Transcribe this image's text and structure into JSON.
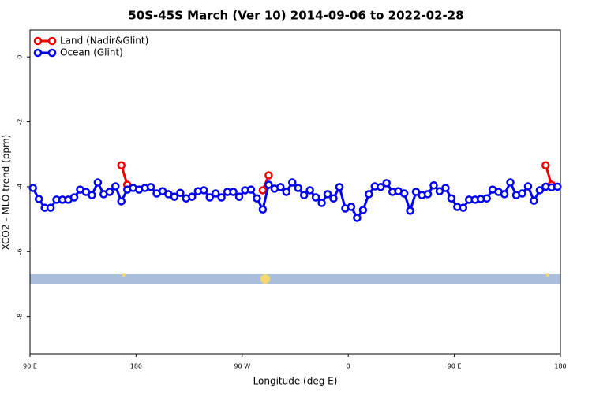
{
  "chart_data": {
    "type": "line",
    "title": "50S-45S March (Ver 10)   2014-09-06 to 2022-02-28",
    "x_label": "Longitude (deg E)",
    "y_label": "XCO2 - MLO trend (ppm)",
    "xlim": [
      90,
      540
    ],
    "ylim": [
      -9.15,
      0.83
    ],
    "xticks": [
      {
        "value": 90,
        "label": "90 E"
      },
      180,
      {
        "value": 270,
        "label": "90 W"
      },
      {
        "value": 360,
        "label": "0"
      },
      {
        "value": 450,
        "label": "90 E"
      },
      {
        "value": 540,
        "label": "180"
      }
    ],
    "yticks": [
      0,
      -2,
      -4,
      -6,
      -8
    ],
    "legend": "top-left",
    "series": [
      {
        "name": "Land (Nadir&Glint)",
        "color": "#ee0000",
        "x": [
          167.5,
          172.5,
          null,
          287.5,
          292.5,
          null,
          527.5,
          532.5
        ],
        "values": [
          -3.34,
          -3.94,
          null,
          -4.11,
          -3.65,
          null,
          -3.34,
          -3.94
        ]
      },
      {
        "name": "Ocean (Glint)",
        "color": "#0000ee",
        "x": [
          92.5,
          97.5,
          102.5,
          107.5,
          112.5,
          117.5,
          122.5,
          127.5,
          132.5,
          137.5,
          142.5,
          147.5,
          152.5,
          157.5,
          162.5,
          167.5,
          172.5,
          177.5,
          182.5,
          187.5,
          192.5,
          197.5,
          202.5,
          207.5,
          212.5,
          217.5,
          222.5,
          227.5,
          232.5,
          237.5,
          242.5,
          247.5,
          252.5,
          257.5,
          262.5,
          267.5,
          272.5,
          277.5,
          282.5,
          287.5,
          292.5,
          297.5,
          302.5,
          307.5,
          312.5,
          317.5,
          322.5,
          327.5,
          332.5,
          337.5,
          342.5,
          347.5,
          352.5,
          357.5,
          362.5,
          367.5,
          372.5,
          377.5,
          382.5,
          387.5,
          392.5,
          397.5,
          402.5,
          407.5,
          412.5,
          417.5,
          422.5,
          427.5,
          432.5,
          437.5,
          442.5,
          447.5,
          452.5,
          457.5,
          462.5,
          467.5,
          472.5,
          477.5,
          482.5,
          487.5,
          492.5,
          497.5,
          502.5,
          507.5,
          512.5,
          517.5,
          522.5,
          527.5,
          532.5,
          537.5
        ],
        "values": [
          -4.04,
          -4.38,
          -4.65,
          -4.65,
          -4.4,
          -4.4,
          -4.4,
          -4.33,
          -4.09,
          -4.16,
          -4.26,
          -3.87,
          -4.23,
          -4.16,
          -3.99,
          -4.45,
          -4.09,
          -4.04,
          -4.09,
          -4.04,
          -4.01,
          -4.21,
          -4.14,
          -4.23,
          -4.31,
          -4.19,
          -4.36,
          -4.31,
          -4.14,
          -4.11,
          -4.33,
          -4.21,
          -4.33,
          -4.16,
          -4.16,
          -4.31,
          -4.11,
          -4.09,
          -4.36,
          -4.7,
          -3.94,
          -4.06,
          -4.01,
          -4.16,
          -3.87,
          -4.04,
          -4.26,
          -4.11,
          -4.33,
          -4.5,
          -4.23,
          -4.36,
          -4.01,
          -4.67,
          -4.62,
          -4.96,
          -4.72,
          -4.23,
          -3.99,
          -4.01,
          -3.89,
          -4.16,
          -4.14,
          -4.21,
          -4.74,
          -4.16,
          -4.26,
          -4.23,
          -3.96,
          -4.14,
          -4.04,
          -4.36,
          -4.62,
          -4.65,
          -4.4,
          -4.4,
          -4.38,
          -4.36,
          -4.09,
          -4.16,
          -4.23,
          -3.87,
          -4.26,
          -4.21,
          -3.99,
          -4.43,
          -4.11,
          -4.0,
          -4.02,
          -4.0
        ]
      }
    ]
  }
}
